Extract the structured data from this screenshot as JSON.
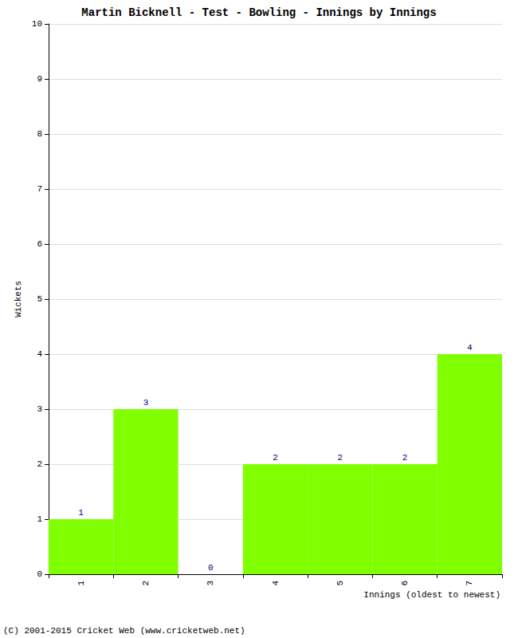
{
  "chart_data": {
    "type": "bar",
    "title": "Martin Bicknell - Test - Bowling - Innings by Innings",
    "x_label": "Innings (oldest to newest)",
    "y_label": "Wickets",
    "categories": [
      "1",
      "2",
      "3",
      "4",
      "5",
      "6",
      "7"
    ],
    "values": [
      1,
      3,
      0,
      2,
      2,
      2,
      4
    ],
    "color": "#7fff00",
    "ylim": [
      0,
      10
    ],
    "yticks": [
      0,
      1,
      2,
      3,
      4,
      5,
      6,
      7,
      8,
      9,
      10
    ],
    "grid": true,
    "data_labels": true,
    "annotations": [
      "(C) 2001-2015 Cricket Web (www.cricketweb.net)"
    ]
  }
}
